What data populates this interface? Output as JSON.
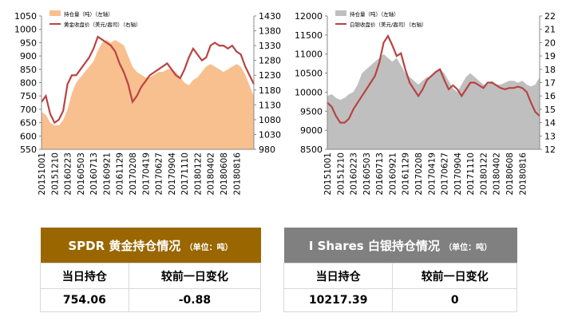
{
  "chart_data": [
    {
      "type": "combo",
      "categories": [
        "20151001",
        null,
        null,
        "20151210",
        null,
        null,
        "20160223",
        null,
        null,
        "20160503",
        null,
        null,
        "20160713",
        null,
        null,
        "20160921",
        null,
        null,
        "20161129",
        null,
        null,
        "20170208",
        null,
        null,
        "20170419",
        null,
        null,
        "20170627",
        null,
        null,
        "20170904",
        null,
        null,
        "20171110",
        null,
        null,
        "20180122",
        null,
        null,
        "20180402",
        null,
        null,
        "20180608",
        null,
        null,
        "20180816",
        null,
        null,
        null,
        null
      ],
      "series": [
        {
          "name": "持仓量（吨）（左轴）",
          "type": "area",
          "color": "#f8c08f",
          "values": [
            690,
            680,
            650,
            640,
            640,
            660,
            700,
            760,
            800,
            820,
            840,
            860,
            880,
            920,
            950,
            960,
            950,
            960,
            950,
            940,
            900,
            860,
            840,
            830,
            820,
            820,
            830,
            840,
            840,
            850,
            850,
            840,
            820,
            800,
            790,
            810,
            820,
            840,
            860,
            870,
            860,
            850,
            840,
            850,
            860,
            870,
            860,
            830,
            790,
            750
          ]
        },
        {
          "name": "黄金收盘价（美元/盎司）（右轴）",
          "type": "line",
          "axis": "y2",
          "color": "#b84444",
          "values": [
            1140,
            1160,
            1100,
            1070,
            1080,
            1110,
            1200,
            1230,
            1230,
            1250,
            1270,
            1290,
            1320,
            1360,
            1350,
            1340,
            1330,
            1310,
            1270,
            1240,
            1200,
            1140,
            1160,
            1190,
            1210,
            1230,
            1240,
            1250,
            1260,
            1270,
            1250,
            1230,
            1220,
            1250,
            1290,
            1320,
            1300,
            1280,
            1290,
            1330,
            1340,
            1330,
            1330,
            1320,
            1330,
            1310,
            1300,
            1260,
            1230,
            1200
          ]
        }
      ],
      "ylim": [
        550,
        1050
      ],
      "yticks": [
        550,
        600,
        650,
        700,
        750,
        800,
        850,
        900,
        950,
        1000,
        1050
      ],
      "y2lim": [
        980,
        1430
      ],
      "y2ticks": [
        980,
        1030,
        1080,
        1130,
        1180,
        1230,
        1280,
        1330,
        1380,
        1430
      ]
    },
    {
      "type": "combo",
      "categories": [
        "20151001",
        null,
        null,
        "20151210",
        null,
        null,
        "20160223",
        null,
        null,
        "20160503",
        null,
        null,
        "20160713",
        null,
        null,
        "20160921",
        null,
        null,
        "20161129",
        null,
        null,
        "20170208",
        null,
        null,
        "20170419",
        null,
        null,
        "20170627",
        null,
        null,
        "20170904",
        null,
        null,
        "20171110",
        null,
        null,
        "20180122",
        null,
        null,
        "20180402",
        null,
        null,
        "20180608",
        null,
        null,
        "20180816",
        null,
        null,
        null,
        null
      ],
      "series": [
        {
          "name": "持仓量（吨）（左轴）",
          "type": "area",
          "color": "#bfbfbf",
          "values": [
            9900,
            9950,
            9850,
            9800,
            9850,
            9950,
            10000,
            10200,
            10500,
            10600,
            10700,
            10800,
            10900,
            11000,
            10900,
            10800,
            10900,
            10700,
            10500,
            10400,
            10300,
            10200,
            10300,
            10400,
            10400,
            10500,
            10600,
            10500,
            10300,
            10100,
            10000,
            10200,
            10400,
            10500,
            10400,
            10300,
            10200,
            10200,
            10300,
            10200,
            10200,
            10250,
            10300,
            10300,
            10250,
            10300,
            10200,
            10150,
            10200,
            10400
          ]
        },
        {
          "name": "白银收盘价（美元/盎司）（右轴）",
          "type": "line",
          "axis": "y2",
          "color": "#b84444",
          "values": [
            15.5,
            15.2,
            14.5,
            14.0,
            14.0,
            14.3,
            15.0,
            15.5,
            16.0,
            16.5,
            17.0,
            17.5,
            18.5,
            20.0,
            20.5,
            19.8,
            19.0,
            19.2,
            18.0,
            17.0,
            16.5,
            16.0,
            16.5,
            17.2,
            17.5,
            17.8,
            18.0,
            17.2,
            16.5,
            16.8,
            16.5,
            16.0,
            16.5,
            17.0,
            17.0,
            16.8,
            16.6,
            17.0,
            17.0,
            16.8,
            16.6,
            16.5,
            16.6,
            16.6,
            16.7,
            16.6,
            16.3,
            15.5,
            14.8,
            14.5
          ]
        }
      ],
      "ylim": [
        8500,
        12000
      ],
      "yticks": [
        8500,
        9000,
        9500,
        10000,
        10500,
        11000,
        11500,
        12000
      ],
      "y2lim": [
        12,
        22
      ],
      "y2ticks": [
        12,
        13,
        14,
        15,
        16,
        17,
        18,
        19,
        20,
        21,
        22
      ]
    }
  ],
  "tables": [
    {
      "title": "SPDR 黄金持仓情况",
      "unit": "（单位：吨）",
      "headers": [
        "当日持仓",
        "较前一日变化"
      ],
      "row": [
        "754.06",
        "-0.88"
      ],
      "color": "#996600"
    },
    {
      "title": "I Shares 白银持仓情况",
      "unit": "（单位：吨）",
      "headers": [
        "当日持仓",
        "较前一日变化"
      ],
      "row": [
        "10217.39",
        "0"
      ],
      "color": "#808080"
    }
  ]
}
